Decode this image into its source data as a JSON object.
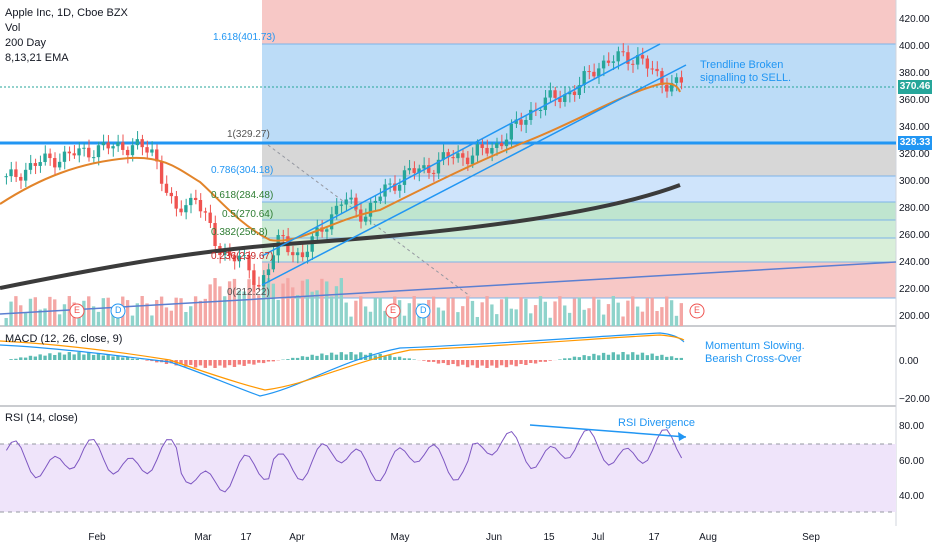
{
  "header": {
    "title": "Apple Inc, 1D, Cboe BZX",
    "items": [
      "Vol",
      "200 Day",
      "8,13,21 EMA"
    ]
  },
  "price_axis": [
    "420.00",
    "400.00",
    "380.00",
    "360.00",
    "340.00",
    "320.00",
    "300.00",
    "280.00",
    "260.00",
    "240.00",
    "220.00",
    "200.00"
  ],
  "macd_axis": [
    "0.00",
    "−20.00"
  ],
  "rsi_axis": [
    "80.00",
    "60.00",
    "40.00"
  ],
  "x_axis": [
    "Feb",
    "Mar",
    "17",
    "Apr",
    "May",
    "Jun",
    "15",
    "Jul",
    "17",
    "Aug",
    "Sep"
  ],
  "tags": {
    "last": "370.46",
    "level": "328.33"
  },
  "panes": {
    "macd": "MACD (12, 26, close, 9)",
    "rsi": "RSI (14, close)"
  },
  "notes": {
    "trend1": "Trendline Broken",
    "trend2": "signalling to SELL.",
    "macd1": "Momentum Slowing.",
    "macd2": "Bearish Cross-Over",
    "rsi": "RSI Divergence"
  },
  "fib_labels": [
    "1.618(401.73)",
    "1(329.27)",
    "0.786(304.18)",
    "0.618(284.48)",
    "0.5(270.64)",
    "0.382(256.8)",
    "0.236(239.67)",
    "0(212.22)"
  ],
  "event_markers": [
    "E",
    "D",
    "E",
    "D",
    "E"
  ],
  "colors": {
    "up": "#26a69a",
    "down": "#ef5350",
    "blue": "#2196f3",
    "ema": "#e2842a",
    "ma200": "#3b3b3b",
    "rsi": "#7e57c2"
  },
  "chart_data": {
    "type": "candlestick",
    "symbol": "Apple Inc",
    "interval": "1D",
    "y_range": [
      195,
      430
    ],
    "last_price": 370.46,
    "horizontal_level": 328.33,
    "fib_levels": [
      {
        "ratio": 1.618,
        "price": 401.73
      },
      {
        "ratio": 1,
        "price": 329.27
      },
      {
        "ratio": 0.786,
        "price": 304.18
      },
      {
        "ratio": 0.618,
        "price": 284.48
      },
      {
        "ratio": 0.5,
        "price": 270.64
      },
      {
        "ratio": 0.382,
        "price": 256.8
      },
      {
        "ratio": 0.236,
        "price": 239.67
      },
      {
        "ratio": 0,
        "price": 212.22
      }
    ],
    "close_series": [
      {
        "date": "2020-01-02",
        "close": 300
      },
      {
        "date": "2020-01-09",
        "close": 309
      },
      {
        "date": "2020-01-16",
        "close": 315
      },
      {
        "date": "2020-01-23",
        "close": 318
      },
      {
        "date": "2020-01-30",
        "close": 322
      },
      {
        "date": "2020-02-06",
        "close": 324
      },
      {
        "date": "2020-02-13",
        "close": 325
      },
      {
        "date": "2020-02-20",
        "close": 320
      },
      {
        "date": "2020-02-27",
        "close": 275
      },
      {
        "date": "2020-03-05",
        "close": 290
      },
      {
        "date": "2020-03-12",
        "close": 250
      },
      {
        "date": "2020-03-19",
        "close": 245
      },
      {
        "date": "2020-03-23",
        "close": 224
      },
      {
        "date": "2020-03-26",
        "close": 258
      },
      {
        "date": "2020-04-02",
        "close": 244
      },
      {
        "date": "2020-04-09",
        "close": 267
      },
      {
        "date": "2020-04-16",
        "close": 286
      },
      {
        "date": "2020-04-23",
        "close": 275
      },
      {
        "date": "2020-04-30",
        "close": 294
      },
      {
        "date": "2020-05-07",
        "close": 305
      },
      {
        "date": "2020-05-14",
        "close": 309
      },
      {
        "date": "2020-05-21",
        "close": 317
      },
      {
        "date": "2020-05-28",
        "close": 318
      },
      {
        "date": "2020-06-04",
        "close": 323
      },
      {
        "date": "2020-06-11",
        "close": 336
      },
      {
        "date": "2020-06-18",
        "close": 352
      },
      {
        "date": "2020-06-25",
        "close": 360
      },
      {
        "date": "2020-07-02",
        "close": 365
      },
      {
        "date": "2020-07-09",
        "close": 383
      },
      {
        "date": "2020-07-16",
        "close": 388
      },
      {
        "date": "2020-07-21",
        "close": 389
      },
      {
        "date": "2020-07-23",
        "close": 371
      },
      {
        "date": "2020-07-24",
        "close": 370.46
      }
    ],
    "rsi_levels": [
      70,
      30
    ]
  }
}
